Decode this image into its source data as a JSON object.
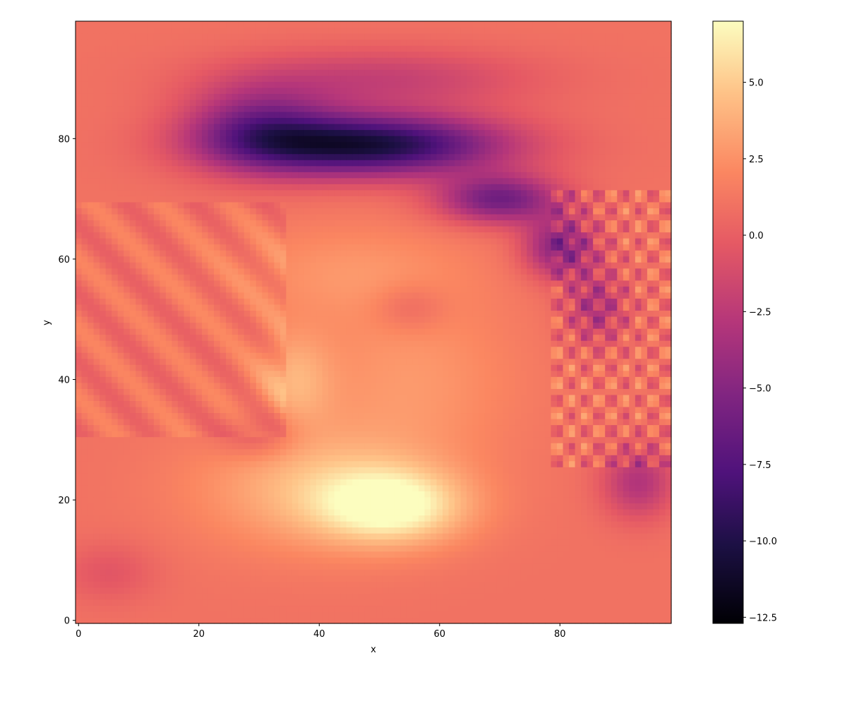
{
  "chart_data": {
    "type": "heatmap",
    "title": "",
    "xlabel": "x",
    "ylabel": "y",
    "xlim": [
      -0.5,
      98.5
    ],
    "ylim": [
      -0.5,
      99.5
    ],
    "grid": false,
    "colormap": "magma",
    "colorbar": {
      "min": -12.7,
      "max": 7.0,
      "orientation": "vertical",
      "position": "right"
    },
    "x_ticks": [
      0,
      20,
      40,
      60,
      80
    ],
    "x_tick_labels": [
      "0",
      "20",
      "40",
      "60",
      "80"
    ],
    "y_ticks": [
      0,
      20,
      40,
      60,
      80
    ],
    "y_tick_labels": [
      "0",
      "20",
      "40",
      "60",
      "80"
    ],
    "colorbar_ticks": [
      5.0,
      2.5,
      0.0,
      -2.5,
      -5.0,
      -7.5,
      -10.0,
      -12.5
    ],
    "colorbar_tick_labels": [
      "5.0",
      "2.5",
      "0.0",
      "−2.5",
      "−5.0",
      "−7.5",
      "−10.0",
      "−12.5"
    ],
    "grid_shape": {
      "cols": 99,
      "rows": 100
    },
    "features": [
      {
        "name": "dark band",
        "x": 50,
        "y": 80,
        "value": -11.5
      },
      {
        "name": "bright core",
        "x": 52,
        "y": 19,
        "value": 6.8
      },
      {
        "name": "mid lobe",
        "x": 35,
        "y": 35,
        "value": 4.5
      }
    ]
  }
}
